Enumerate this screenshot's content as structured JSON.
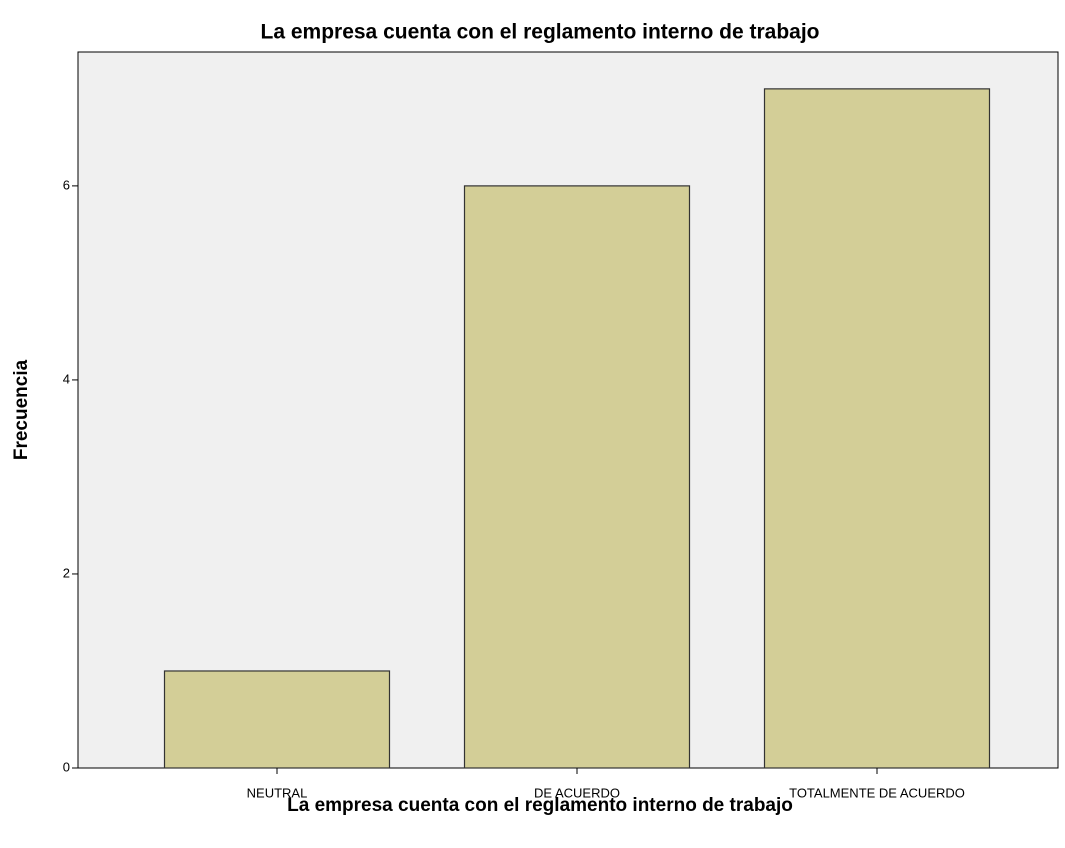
{
  "chart_data": {
    "type": "bar",
    "title": "La empresa cuenta con el reglamento interno de trabajo",
    "x_label": "La empresa cuenta con el reglamento interno de trabajo",
    "y_label": "Frecuencia",
    "categories": [
      "NEUTRAL",
      "DE ACUERDO",
      "TOTALMENTE DE ACUERDO"
    ],
    "values": [
      1,
      6,
      7
    ],
    "color": "#d3ce97",
    "ylim": [
      0,
      7.38
    ],
    "yticks": [
      0,
      2,
      4,
      6
    ],
    "grid": false
  }
}
